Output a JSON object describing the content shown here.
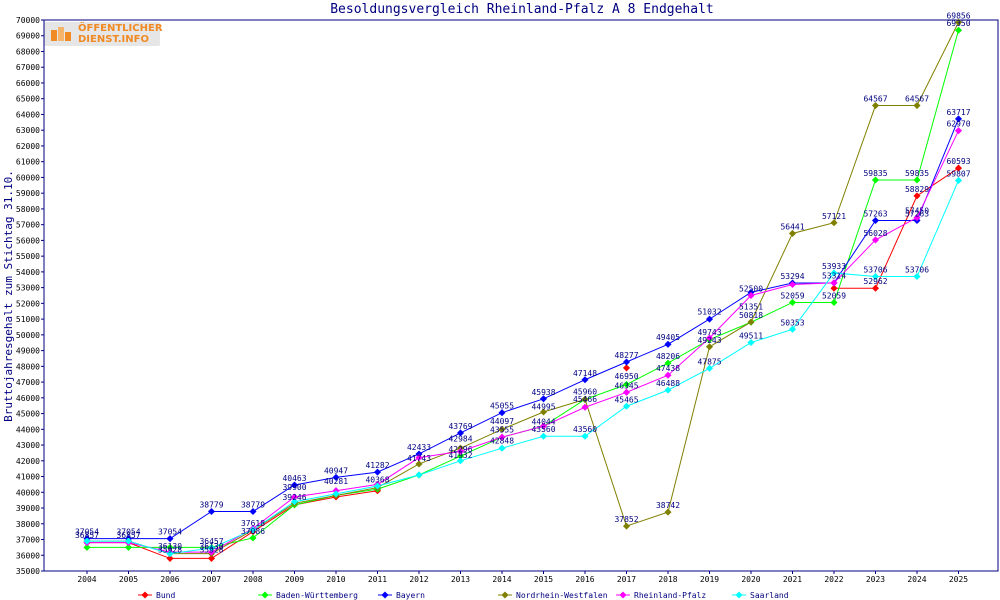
{
  "logo": {
    "line1": "ÖFFENTLICHER",
    "line2": "DIENST.INFO"
  },
  "chart_data": {
    "type": "line",
    "title": "Besoldungsvergleich Rheinland-Pfalz A 8 Endgehalt",
    "xlabel": "",
    "ylabel": "Bruttojahresgehalt zum Stichtag 31.10.",
    "ylim": [
      35000,
      70000
    ],
    "ytick_step": 1000,
    "grid": false,
    "legend": "bottom",
    "categories": [
      "2004",
      "2005",
      "2006",
      "2007",
      "2008",
      "2009",
      "2010",
      "2011",
      "2012",
      "2013",
      "2014",
      "2015",
      "2016",
      "2017",
      "2018",
      "2019",
      "2020",
      "2021",
      "2022",
      "2023",
      "2024",
      "2025"
    ],
    "series": [
      {
        "name": "Bund",
        "color": "#ff0000",
        "values": [
          36800,
          36800,
          35800,
          35800,
          37500,
          39200,
          39700,
          40100,
          null,
          null,
          null,
          null,
          null,
          47900,
          null,
          null,
          null,
          null,
          52962,
          52962,
          58829,
          60593
        ]
      },
      {
        "name": "Baden-Württemberg",
        "color": "#00ff00",
        "values": [
          36500,
          36500,
          36500,
          36500,
          37100,
          39200,
          39800,
          40200,
          41100,
          42300,
          43500,
          44200,
          45900,
          46845,
          48206,
          49700,
          50800,
          52059,
          52059,
          59835,
          59835,
          69350
        ]
      },
      {
        "name": "Bayern",
        "color": "#0000ff",
        "values": [
          37054,
          37054,
          37054,
          38779,
          38779,
          40463,
          40947,
          41282,
          42433,
          43769,
          45055,
          45938,
          47148,
          48277,
          49400,
          51000,
          52700,
          53294,
          53300,
          57263,
          57263,
          63717
        ]
      },
      {
        "name": "Nordrhein-Westfalen",
        "color": "#808000",
        "values": [
          36900,
          36900,
          36100,
          36100,
          37600,
          39300,
          39800,
          40300,
          41800,
          42800,
          44000,
          45100,
          45900,
          37852,
          38742,
          49243,
          50818,
          56441,
          57121,
          64567,
          64567,
          69856
        ]
      },
      {
        "name": "Rheinland-Pfalz",
        "color": "#ff00ff",
        "values": [
          36800,
          36800,
          36200,
          36200,
          37700,
          39700,
          40100,
          40500,
          42200,
          42600,
          43500,
          44200,
          45400,
          46350,
          47438,
          49800,
          52500,
          53200,
          53300,
          56028,
          57450,
          62970
        ]
      },
      {
        "name": "Saarland",
        "color": "#00ffff",
        "values": [
          36900,
          36900,
          36100,
          36457,
          37618,
          39400,
          39900,
          40400,
          41100,
          42000,
          42800,
          43560,
          43560,
          45465,
          46488,
          47875,
          49511,
          50353,
          53933,
          53706,
          53706,
          59807
        ]
      }
    ],
    "data_labels": [
      {
        "text": "37054",
        "x": "2004",
        "y": 37054
      },
      {
        "text": "36857",
        "x": "2004",
        "y": 36857
      },
      {
        "text": "37054",
        "x": "2005",
        "y": 37054
      },
      {
        "text": "36857",
        "x": "2005",
        "y": 36857
      },
      {
        "text": "37054",
        "x": "2006",
        "y": 37054
      },
      {
        "text": "36130",
        "x": "2006",
        "y": 36130
      },
      {
        "text": "35928",
        "x": "2006",
        "y": 35928
      },
      {
        "text": "36457",
        "x": "2007",
        "y": 36457
      },
      {
        "text": "36130",
        "x": "2007",
        "y": 36130
      },
      {
        "text": "35928",
        "x": "2007",
        "y": 35928
      },
      {
        "text": "38779",
        "x": "2007",
        "y": 38779
      },
      {
        "text": "38779",
        "x": "2008",
        "y": 38779
      },
      {
        "text": "37618",
        "x": "2008",
        "y": 37618
      },
      {
        "text": "37086",
        "x": "2008",
        "y": 37086
      },
      {
        "text": "40463",
        "x": "2009",
        "y": 40463
      },
      {
        "text": "39900",
        "x": "2009",
        "y": 39900
      },
      {
        "text": "39246",
        "x": "2009",
        "y": 39246
      },
      {
        "text": "40947",
        "x": "2010",
        "y": 40947
      },
      {
        "text": "40281",
        "x": "2010",
        "y": 40281
      },
      {
        "text": "41282",
        "x": "2011",
        "y": 41282
      },
      {
        "text": "40368",
        "x": "2011",
        "y": 40368
      },
      {
        "text": "42433",
        "x": "2012",
        "y": 42433
      },
      {
        "text": "41743",
        "x": "2012",
        "y": 41743
      },
      {
        "text": "43769",
        "x": "2013",
        "y": 43769
      },
      {
        "text": "42984",
        "x": "2013",
        "y": 42984
      },
      {
        "text": "42296",
        "x": "2013",
        "y": 42296
      },
      {
        "text": "41932",
        "x": "2013",
        "y": 41932
      },
      {
        "text": "45055",
        "x": "2014",
        "y": 45055
      },
      {
        "text": "44097",
        "x": "2014",
        "y": 44097
      },
      {
        "text": "43555",
        "x": "2014",
        "y": 43555
      },
      {
        "text": "42848",
        "x": "2014",
        "y": 42848
      },
      {
        "text": "45938",
        "x": "2015",
        "y": 45938
      },
      {
        "text": "44995",
        "x": "2015",
        "y": 44995
      },
      {
        "text": "44044",
        "x": "2015",
        "y": 44044
      },
      {
        "text": "43560",
        "x": "2015",
        "y": 43560
      },
      {
        "text": "47148",
        "x": "2016",
        "y": 47148
      },
      {
        "text": "45960",
        "x": "2016",
        "y": 45960
      },
      {
        "text": "45466",
        "x": "2016",
        "y": 45466
      },
      {
        "text": "43560",
        "x": "2016",
        "y": 43560
      },
      {
        "text": "48277",
        "x": "2017",
        "y": 48277
      },
      {
        "text": "46950",
        "x": "2017",
        "y": 46950
      },
      {
        "text": "46345",
        "x": "2017",
        "y": 46345
      },
      {
        "text": "45465",
        "x": "2017",
        "y": 45465
      },
      {
        "text": "37852",
        "x": "2017",
        "y": 37852
      },
      {
        "text": "49405",
        "x": "2018",
        "y": 49405
      },
      {
        "text": "48206",
        "x": "2018",
        "y": 48206
      },
      {
        "text": "47438",
        "x": "2018",
        "y": 47438
      },
      {
        "text": "46488",
        "x": "2018",
        "y": 46488
      },
      {
        "text": "38742",
        "x": "2018",
        "y": 38742
      },
      {
        "text": "51032",
        "x": "2019",
        "y": 51032
      },
      {
        "text": "49743",
        "x": "2019",
        "y": 49743
      },
      {
        "text": "49243",
        "x": "2019",
        "y": 49243
      },
      {
        "text": "47875",
        "x": "2019",
        "y": 47875
      },
      {
        "text": "52500",
        "x": "2020",
        "y": 52500
      },
      {
        "text": "51351",
        "x": "2020",
        "y": 51351
      },
      {
        "text": "50818",
        "x": "2020",
        "y": 50818
      },
      {
        "text": "49511",
        "x": "2020",
        "y": 49511
      },
      {
        "text": "56441",
        "x": "2021",
        "y": 56441
      },
      {
        "text": "53294",
        "x": "2021",
        "y": 53294
      },
      {
        "text": "52059",
        "x": "2021",
        "y": 52059
      },
      {
        "text": "50353",
        "x": "2021",
        "y": 50353
      },
      {
        "text": "57121",
        "x": "2022",
        "y": 57121
      },
      {
        "text": "53933",
        "x": "2022",
        "y": 53933
      },
      {
        "text": "53314",
        "x": "2022",
        "y": 53314
      },
      {
        "text": "52059",
        "x": "2022",
        "y": 52059
      },
      {
        "text": "64567",
        "x": "2023",
        "y": 64567
      },
      {
        "text": "59835",
        "x": "2023",
        "y": 59835
      },
      {
        "text": "57263",
        "x": "2023",
        "y": 57263
      },
      {
        "text": "56028",
        "x": "2023",
        "y": 56028
      },
      {
        "text": "53706",
        "x": "2023",
        "y": 53706
      },
      {
        "text": "52962",
        "x": "2023",
        "y": 52962
      },
      {
        "text": "64567",
        "x": "2024",
        "y": 64567
      },
      {
        "text": "59835",
        "x": "2024",
        "y": 59835
      },
      {
        "text": "58829",
        "x": "2024",
        "y": 58829
      },
      {
        "text": "57450",
        "x": "2024",
        "y": 57450
      },
      {
        "text": "57263",
        "x": "2024",
        "y": 57263
      },
      {
        "text": "53706",
        "x": "2024",
        "y": 53706
      },
      {
        "text": "69856",
        "x": "2025",
        "y": 69856
      },
      {
        "text": "69350",
        "x": "2025",
        "y": 69350
      },
      {
        "text": "63717",
        "x": "2025",
        "y": 63717
      },
      {
        "text": "62970",
        "x": "2025",
        "y": 62970
      },
      {
        "text": "60593",
        "x": "2025",
        "y": 60593
      },
      {
        "text": "59807",
        "x": "2025",
        "y": 59807
      }
    ]
  }
}
